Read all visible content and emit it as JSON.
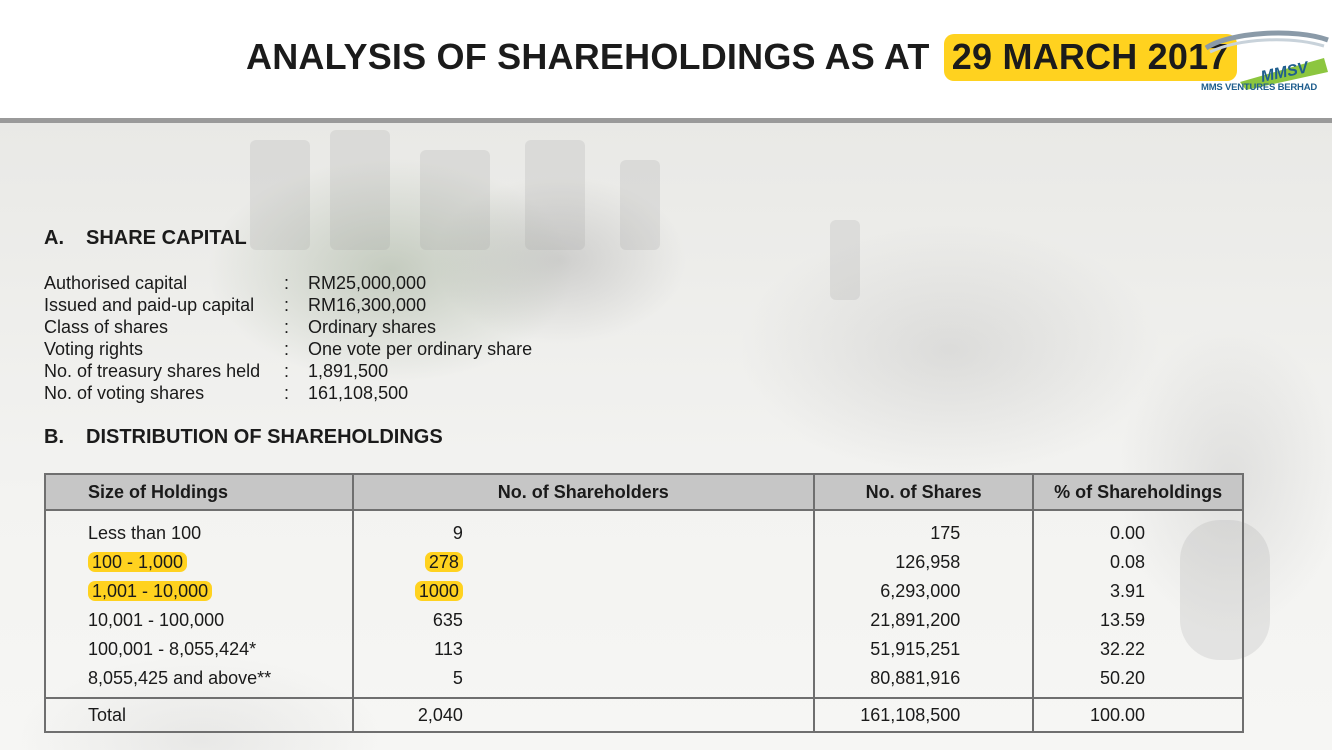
{
  "header": {
    "title_prefix": "ANALYSIS OF SHAREHOLDINGS AS AT",
    "title_date": "29 MARCH 2017",
    "logo_text": "MMSV",
    "logo_caption": "MMS VENTURES BERHAD"
  },
  "section_a": {
    "letter": "A.",
    "heading": "SHARE CAPITAL",
    "rows": [
      {
        "label": "Authorised capital",
        "value": "RM25,000,000"
      },
      {
        "label": "Issued and paid-up capital",
        "value": "RM16,300,000"
      },
      {
        "label": "Class of shares",
        "value": "Ordinary shares"
      },
      {
        "label": "Voting rights",
        "value": "One vote per ordinary share"
      },
      {
        "label": "No. of treasury shares held",
        "value": "1,891,500"
      },
      {
        "label": "No. of voting shares",
        "value": "161,108,500"
      }
    ]
  },
  "section_b": {
    "letter": "B.",
    "heading": "DISTRIBUTION OF SHAREHOLDINGS",
    "columns": [
      "Size of Holdings",
      "No. of Shareholders",
      "No. of Shares",
      "% of Shareholdings"
    ],
    "rows": [
      {
        "size": "Less than 100",
        "holders": "9",
        "shares": "175",
        "pct": "0.00"
      },
      {
        "size": "100 - 1,000",
        "holders": "278",
        "shares": "126,958",
        "pct": "0.08"
      },
      {
        "size": "1,001 - 10,000",
        "holders": "1000",
        "shares": "6,293,000",
        "pct": "3.91"
      },
      {
        "size": "10,001 - 100,000",
        "holders": "635",
        "shares": "21,891,200",
        "pct": "13.59"
      },
      {
        "size": "100,001 - 8,055,424*",
        "holders": "113",
        "shares": "51,915,251",
        "pct": "32.22"
      },
      {
        "size": "8,055,425 and above**",
        "holders": "5",
        "shares": "80,881,916",
        "pct": "50.20"
      }
    ],
    "total": {
      "size": "Total",
      "holders": "2,040",
      "shares": "161,108,500",
      "pct": "100.00"
    }
  },
  "colors": {
    "highlight": "#ffd21f",
    "header_bar": "#9a9a9a",
    "table_header_bg": "#c6c6c6",
    "logo_green": "#8cc63f",
    "logo_blue": "#1f5e8e"
  }
}
